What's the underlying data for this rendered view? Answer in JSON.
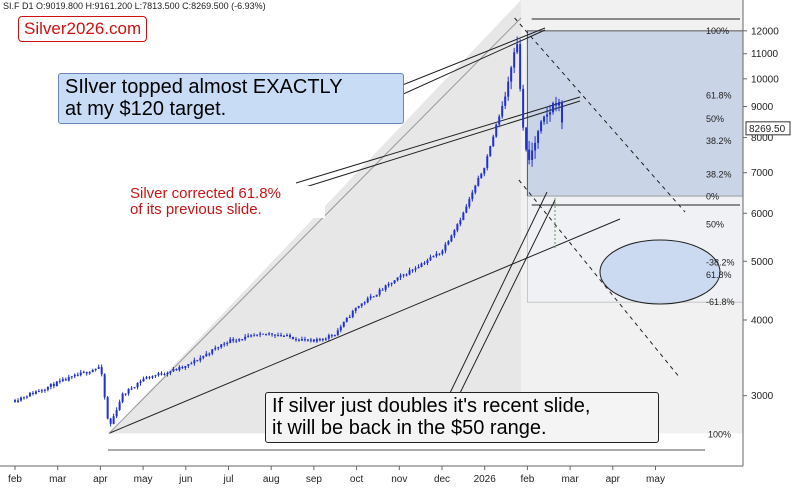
{
  "header": {
    "text": "SI.F  D1  O:9019.800  H:9161.200  L:7813.500  C:8269.500  (-6.93%)"
  },
  "brand": {
    "text": "Silver2026.com",
    "color": "#d01010"
  },
  "annotations": [
    {
      "id": "topped",
      "lines": [
        "SIlver topped almost EXACTLY",
        "at my $120 target."
      ]
    },
    {
      "id": "corrected",
      "lines": [
        "Silver corrected 61.8%",
        "of its previous slide."
      ],
      "color": "#c81414"
    },
    {
      "id": "doubles",
      "lines": [
        "If silver just doubles it's recent slide,",
        "it will be back in the $50 range."
      ]
    }
  ],
  "price_label": "8269.50",
  "fib_upper": [
    {
      "label": "100%",
      "value": 12000
    },
    {
      "label": "61.8%",
      "value": 9380
    },
    {
      "label": "50%",
      "value": 8580
    },
    {
      "label": "38.2%",
      "value": 7900
    },
    {
      "label": "38.2%",
      "value": 6950
    },
    {
      "label": "0%",
      "value": 6400
    }
  ],
  "fib_lower": [
    {
      "label": "50%",
      "value": 5750
    },
    {
      "label": "-38.2%",
      "value": 4980
    },
    {
      "label": "61.8%",
      "value": 4750
    },
    {
      "label": "-61.8%",
      "value": 4280
    }
  ],
  "fib_bottom": {
    "label": "100%",
    "value": 2600
  },
  "colors": {
    "candles": "#1f2fd0",
    "fan_fill": "#e6e6e6",
    "box_blue": "#7e9fd2",
    "ellipse": "#bfd2f0",
    "accent_red": "#c81414",
    "price_tag": "#333333"
  },
  "chart_data": {
    "type": "candlestick",
    "symbol": "SI.F",
    "timeframe": "D1",
    "ohlc_last": {
      "open": 9019.8,
      "high": 9161.2,
      "low": 7813.5,
      "close": 8269.5,
      "change_pct": -6.93
    },
    "x_ticks": [
      "feb",
      "mar",
      "apr",
      "may",
      "jun",
      "jul",
      "aug",
      "sep",
      "oct",
      "nov",
      "dec",
      "2026",
      "feb",
      "mar",
      "apr",
      "may"
    ],
    "y_ticks": [
      12000,
      11000,
      10000,
      9000,
      8000,
      7000,
      6000,
      5000,
      4000,
      3000
    ],
    "y_scale": "log",
    "ylim": [
      2450,
      12600
    ],
    "series": [
      {
        "month": 0,
        "value": 2950
      },
      {
        "month": 1,
        "value": 3150
      },
      {
        "month": 2,
        "value": 3350
      },
      {
        "month": 2.2,
        "value": 2650
      },
      {
        "month": 2.5,
        "value": 3000
      },
      {
        "month": 3,
        "value": 3200
      },
      {
        "month": 4,
        "value": 3350
      },
      {
        "month": 5,
        "value": 3700
      },
      {
        "month": 6,
        "value": 3800
      },
      {
        "month": 7,
        "value": 3680
      },
      {
        "month": 7.5,
        "value": 3800
      },
      {
        "month": 8,
        "value": 4200
      },
      {
        "month": 9,
        "value": 4700
      },
      {
        "month": 10,
        "value": 5200
      },
      {
        "month": 10.5,
        "value": 6000
      },
      {
        "month": 11,
        "value": 7200
      },
      {
        "month": 11.5,
        "value": 9500
      },
      {
        "month": 11.75,
        "value": 11900
      },
      {
        "month": 11.85,
        "value": 9000
      },
      {
        "month": 12,
        "value": 7200
      },
      {
        "month": 12.3,
        "value": 8300
      },
      {
        "month": 12.7,
        "value": 9300
      },
      {
        "month": 12.85,
        "value": 8270
      }
    ],
    "grid": false
  }
}
